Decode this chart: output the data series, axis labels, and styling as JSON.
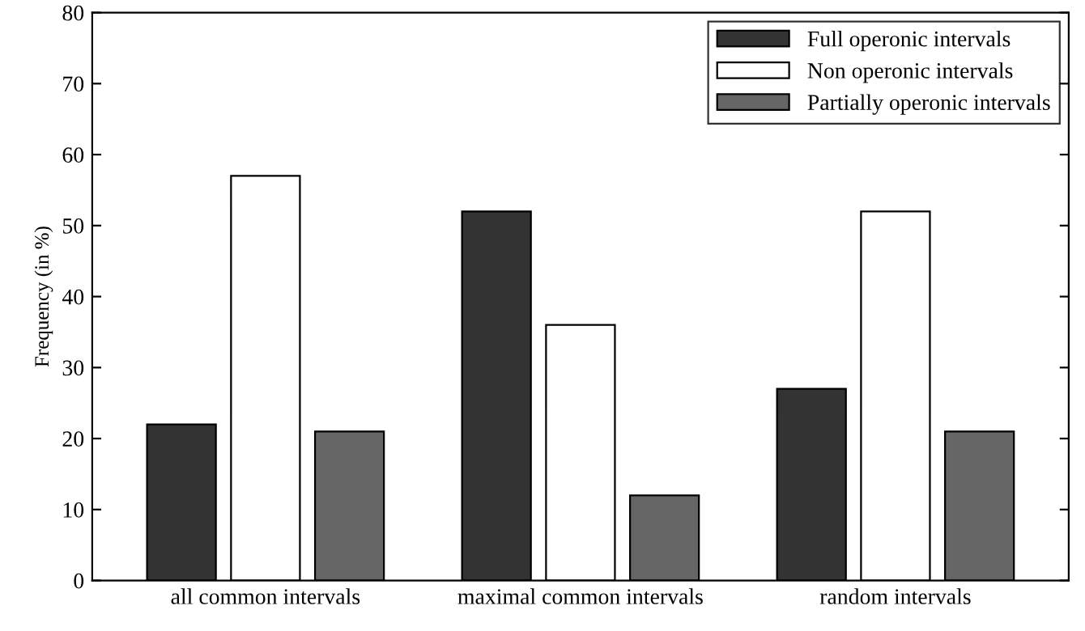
{
  "chart_data": {
    "type": "bar",
    "ylabel": "Frequency (in %)",
    "categories": [
      "all common intervals",
      "maximal common intervals",
      "random intervals"
    ],
    "series": [
      {
        "name": "Full operonic intervals",
        "color": "#333333",
        "values": [
          22,
          52,
          27
        ]
      },
      {
        "name": "Non operonic intervals",
        "color": "#ffffff",
        "values": [
          57,
          36,
          52
        ]
      },
      {
        "name": "Partially operonic intervals",
        "color": "#666666",
        "values": [
          21,
          12,
          21
        ]
      }
    ],
    "ylim": [
      0,
      80
    ],
    "yticks": [
      0,
      10,
      20,
      30,
      40,
      50,
      60,
      70,
      80
    ],
    "grid": false,
    "legend": "top right"
  }
}
